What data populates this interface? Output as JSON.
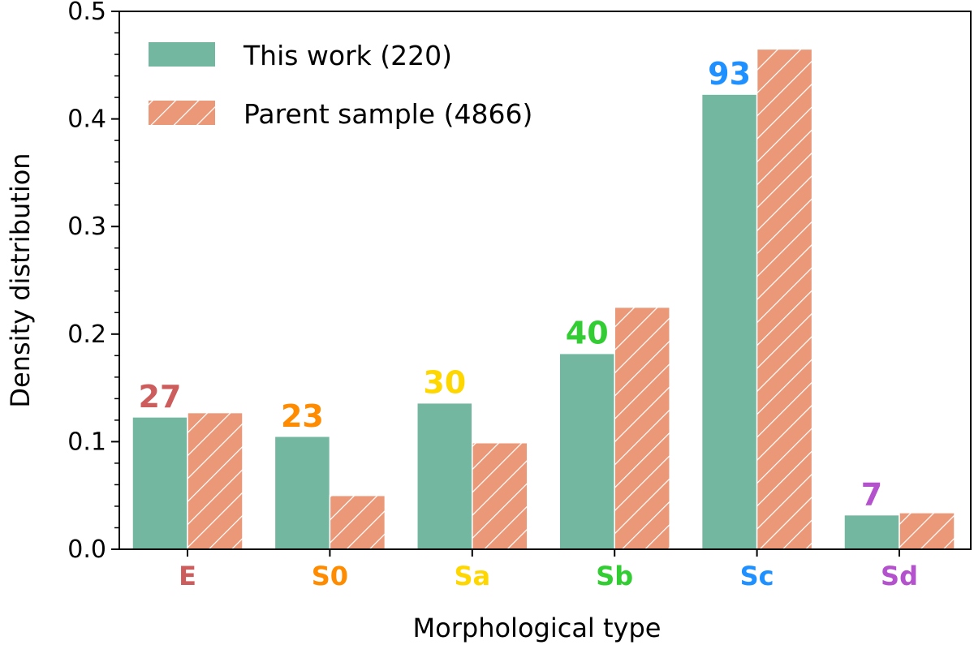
{
  "chart_data": {
    "type": "bar",
    "xlabel": "Morphological type",
    "ylabel": "Density distribution",
    "ylim": [
      0,
      0.5
    ],
    "yticks": [
      "0.0",
      "0.1",
      "0.2",
      "0.3",
      "0.4",
      "0.5"
    ],
    "categories": [
      "E",
      "S0",
      "Sa",
      "Sb",
      "Sc",
      "Sd"
    ],
    "category_colors": [
      "#cd5c5c",
      "#ff8c00",
      "#ffd700",
      "#32cd32",
      "#1e90ff",
      "#b452cd"
    ],
    "series": [
      {
        "name": "This work (220)",
        "color": "#73b7a1",
        "values": [
          0.123,
          0.105,
          0.136,
          0.182,
          0.423,
          0.032
        ],
        "counts": [
          "27",
          "23",
          "30",
          "40",
          "93",
          "7"
        ]
      },
      {
        "name": "Parent sample (4866)",
        "color": "#ea9878",
        "hatch": true,
        "values": [
          0.127,
          0.05,
          0.099,
          0.225,
          0.465,
          0.034
        ]
      }
    ],
    "legend_position": "top-left",
    "grid": false
  }
}
